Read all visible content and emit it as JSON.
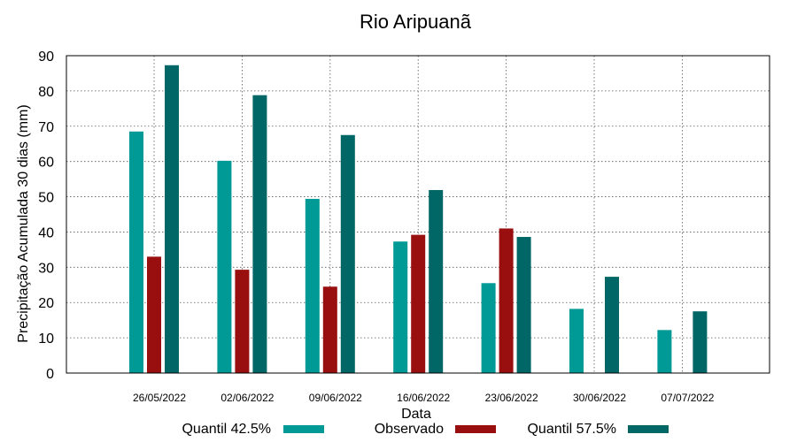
{
  "chart_data": {
    "type": "bar",
    "title": "Rio Aripuanã",
    "xlabel": "Data",
    "ylabel": "Precipitação Acumulada 30 dias (mm)",
    "ylim": [
      0,
      90
    ],
    "yticks": [
      0,
      10,
      20,
      30,
      40,
      50,
      60,
      70,
      80,
      90
    ],
    "grid": true,
    "legend_position": "bottom",
    "categories": [
      "26/05/2022",
      "02/06/2022",
      "09/06/2022",
      "16/06/2022",
      "23/06/2022",
      "30/06/2022",
      "07/07/2022"
    ],
    "series": [
      {
        "name": "Quantil 42.5%",
        "color": "#009a96",
        "values": [
          68.5,
          60.2,
          49.4,
          37.3,
          25.5,
          18.2,
          12.2
        ]
      },
      {
        "name": "Observado",
        "color": "#990f0f",
        "values": [
          33.0,
          29.3,
          24.5,
          39.2,
          41.0,
          null,
          null
        ]
      },
      {
        "name": "Quantil 57.5%",
        "color": "#006666",
        "values": [
          87.3,
          78.8,
          67.5,
          51.9,
          38.6,
          27.3,
          17.5
        ]
      }
    ]
  }
}
